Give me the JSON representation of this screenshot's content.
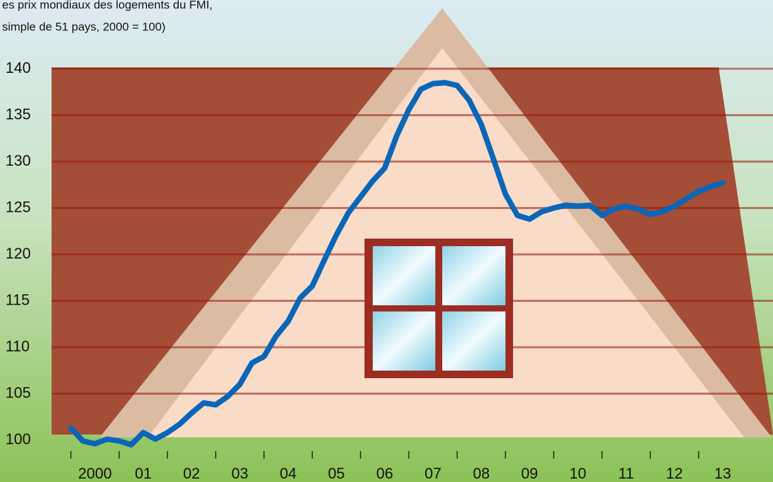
{
  "chart_data": {
    "type": "line",
    "title_lines": [
      "es prix mondiaux des logements du FMI,",
      "simple de 51 pays, 2000 = 100)"
    ],
    "categories": [
      "2000",
      "01",
      "02",
      "03",
      "04",
      "05",
      "06",
      "07",
      "08",
      "09",
      "10",
      "11",
      "12",
      "13"
    ],
    "x": [
      2000,
      2000.25,
      2000.5,
      2000.75,
      2001,
      2001.25,
      2001.5,
      2001.75,
      2002,
      2002.25,
      2002.5,
      2002.75,
      2003,
      2003.25,
      2003.5,
      2003.75,
      2004,
      2004.25,
      2004.5,
      2004.75,
      2005,
      2005.25,
      2005.5,
      2005.75,
      2006,
      2006.25,
      2006.5,
      2006.75,
      2007,
      2007.25,
      2007.5,
      2007.75,
      2008,
      2008.25,
      2008.5,
      2008.75,
      2009,
      2009.25,
      2009.5,
      2009.75,
      2010,
      2010.25,
      2010.5,
      2010.75,
      2011,
      2011.25,
      2011.5,
      2011.75,
      2012,
      2012.25,
      2012.5,
      2012.75,
      2013,
      2013.25,
      2013.5
    ],
    "series": [
      {
        "color": "#0a66b8",
        "values": [
          101.3,
          99.9,
          99.6,
          100.1,
          99.9,
          99.5,
          100.8,
          100.1,
          100.8,
          101.7,
          102.9,
          104.0,
          103.8,
          104.7,
          106.0,
          108.3,
          109.0,
          111.2,
          112.8,
          115.3,
          116.6,
          119.4,
          122.1,
          124.5,
          126.2,
          127.9,
          129.3,
          132.8,
          135.6,
          137.8,
          138.4,
          138.5,
          138.2,
          136.6,
          134.0,
          130.3,
          126.5,
          124.2,
          123.8,
          124.6,
          125.0,
          125.3,
          125.2,
          125.3,
          124.2,
          124.9,
          125.2,
          124.9,
          124.3,
          124.6,
          125.2,
          126.0,
          126.8,
          127.3,
          127.7
        ]
      }
    ],
    "xlim": [
      2000,
      2014
    ],
    "xticks": [
      2000,
      2001,
      2002,
      2003,
      2004,
      2005,
      2006,
      2007,
      2008,
      2009,
      2010,
      2011,
      2012,
      2013
    ],
    "ylim": [
      100,
      140
    ],
    "yticks": [
      100,
      105,
      110,
      115,
      120,
      125,
      130,
      135,
      140
    ],
    "grid": true
  }
}
